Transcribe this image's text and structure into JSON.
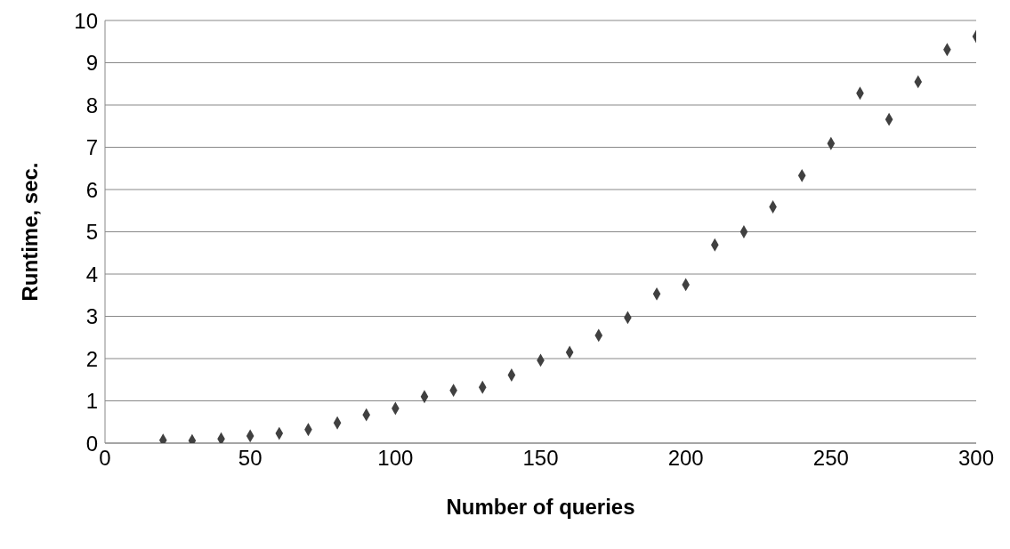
{
  "chart_data": {
    "type": "scatter",
    "xlabel": "Number of queries",
    "ylabel": "Runtime, sec.",
    "x": [
      20,
      30,
      40,
      50,
      60,
      70,
      80,
      90,
      100,
      110,
      120,
      130,
      140,
      150,
      160,
      170,
      180,
      190,
      200,
      210,
      220,
      230,
      240,
      250,
      260,
      270,
      280,
      290,
      300
    ],
    "series": [
      {
        "color": "#404040",
        "values": [
          0.07,
          0.06,
          0.1,
          0.17,
          0.23,
          0.32,
          0.48,
          0.67,
          0.82,
          1.1,
          1.25,
          1.32,
          1.61,
          1.96,
          2.15,
          2.55,
          2.97,
          3.53,
          3.75,
          4.69,
          5.0,
          5.59,
          6.33,
          7.09,
          8.28,
          7.66,
          8.55,
          9.31,
          9.62
        ]
      }
    ],
    "xlim": [
      0,
      300
    ],
    "xticks": [
      0,
      50,
      100,
      150,
      200,
      250,
      300
    ],
    "ylim": [
      0,
      10
    ],
    "yticks": [
      0,
      1,
      2,
      3,
      4,
      5,
      6,
      7,
      8,
      9,
      10
    ],
    "grid": "y",
    "legend": false,
    "marker": "diamond"
  }
}
